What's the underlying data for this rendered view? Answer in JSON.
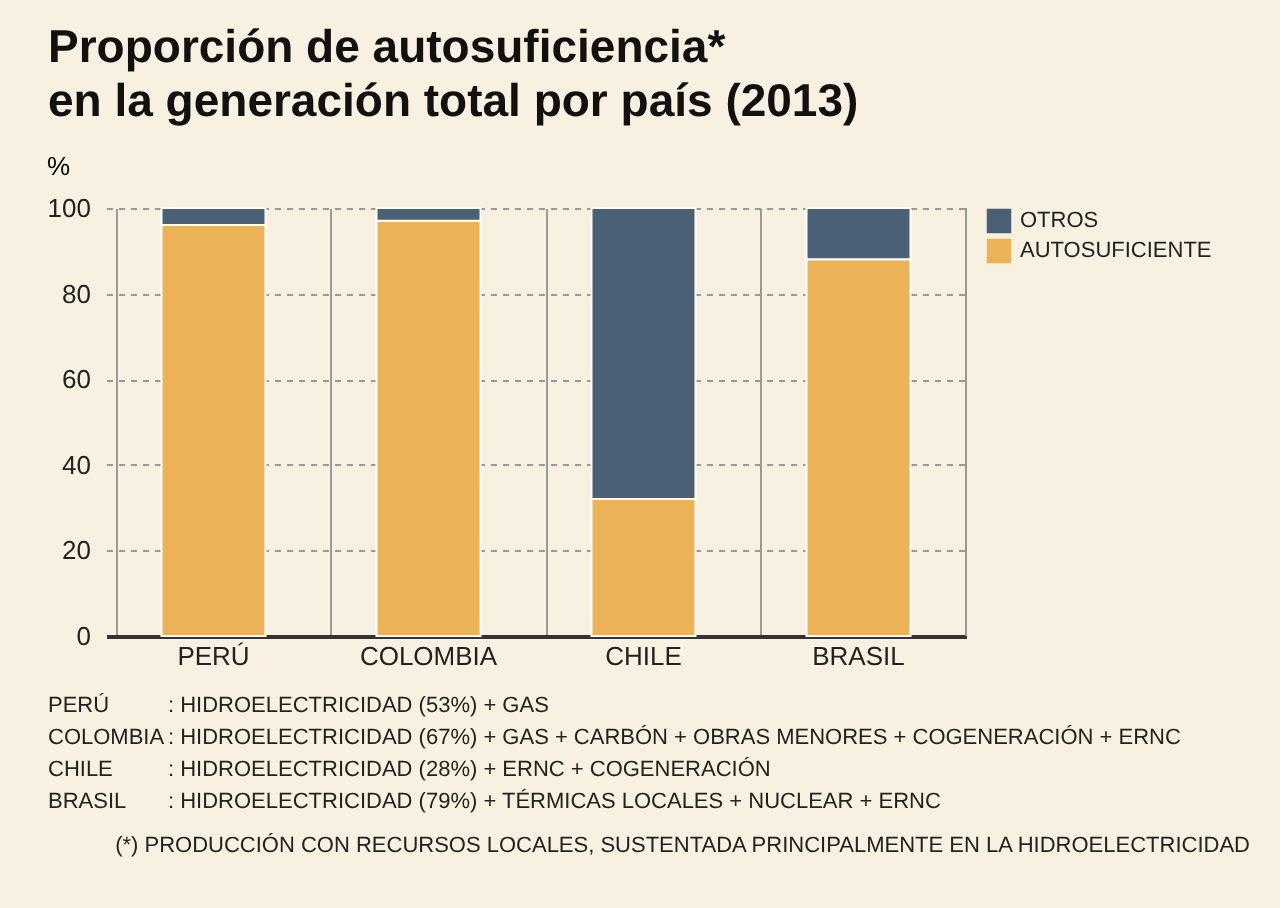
{
  "chart_data": {
    "type": "bar",
    "title": "Proporción de autosuficiencia*\nen la generación total por país (2013)",
    "ylabel": "%",
    "categories": [
      "PERÚ",
      "COLOMBIA",
      "CHILE",
      "BRASIL"
    ],
    "series": [
      {
        "name": "AUTOSUFICIENTE",
        "color": "#ebb257",
        "values": [
          96,
          97,
          32,
          88
        ]
      },
      {
        "name": "OTROS",
        "color": "#4a6074",
        "values": [
          4,
          3,
          68,
          12
        ]
      }
    ],
    "stacked": true,
    "ylim": [
      0,
      100
    ],
    "yticks": [
      0,
      20,
      40,
      60,
      80,
      100
    ],
    "grid": true,
    "legend": "right",
    "annotations": [
      "PERÚ : HIDROELECTRICIDAD (53%) + GAS",
      "COLOMBIA : HIDROELECTRICIDAD (67%) + GAS + CARBÓN + OBRAS MENORES + COGENERACIÓN + ERNC",
      "CHILE : HIDROELECTRICIDAD (28%) + ERNC + COGENERACIÓN",
      "BRASIL : HIDROELECTRICIDAD (79%) + TÉRMICAS LOCALES + NUCLEAR + ERNC",
      "(*) PRODUCCIÓN CON RECURSOS LOCALES, SUSTENTADA PRINCIPALMENTE EN LA HIDROELECTRICIDAD"
    ]
  }
}
